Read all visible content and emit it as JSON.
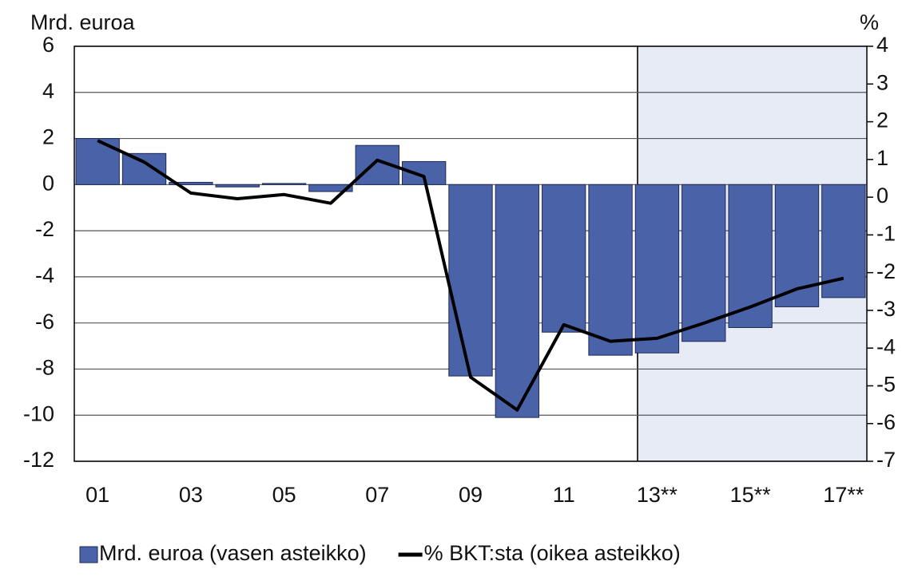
{
  "chart_data": {
    "type": "bar",
    "y_label": "Mrd. euroa",
    "y2_label": "%",
    "categories": [
      "01",
      null,
      "03",
      null,
      "05",
      null,
      "07",
      null,
      "09",
      null,
      "11",
      null,
      "13**",
      null,
      "15**",
      null,
      "17**"
    ],
    "series": [
      {
        "name": "Mrd. euroa (vasen asteikko)",
        "type": "bar",
        "color": "#4a62a8",
        "values": [
          2.0,
          1.35,
          0.1,
          -0.1,
          0.05,
          -0.3,
          1.7,
          1.0,
          -8.3,
          -10.1,
          -6.4,
          -7.4,
          -7.3,
          -6.8,
          -6.2,
          -5.3,
          -4.9
        ]
      },
      {
        "name": "% BKT:sta (oikea asteikko)",
        "type": "line",
        "axis": "y2",
        "color": "#000000",
        "values": [
          1.5,
          0.93,
          0.11,
          -0.04,
          0.07,
          -0.16,
          0.98,
          0.55,
          -4.77,
          -5.64,
          -3.38,
          -3.82,
          -3.74,
          -3.34,
          -2.91,
          -2.43,
          -2.15
        ]
      }
    ],
    "ylim": [
      -12,
      6
    ],
    "yticks": [
      -12,
      -10,
      -8,
      -6,
      -4,
      -2,
      0,
      2,
      4,
      6
    ],
    "y2lim": [
      -7,
      4
    ],
    "y2ticks": [
      -7,
      -6,
      -5,
      -4,
      -3,
      -2,
      -1,
      0,
      1,
      2,
      3,
      4
    ],
    "grid": true,
    "legend": "bottom"
  }
}
